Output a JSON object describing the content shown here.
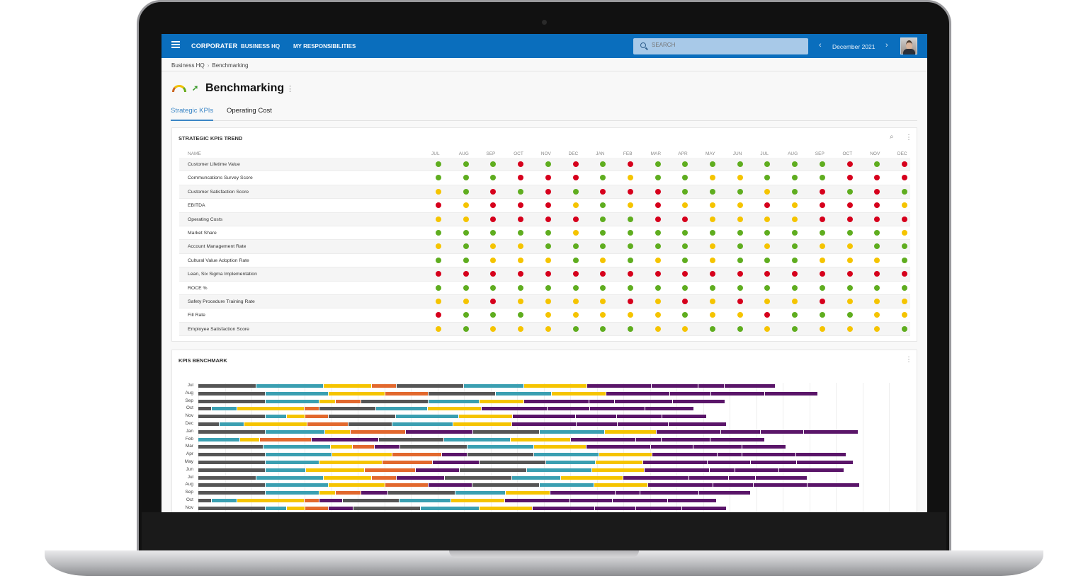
{
  "nav": {
    "logo": "CORPORATER",
    "links": [
      "BUSINESS HQ",
      "MY RESPONSIBILITIES"
    ],
    "search_placeholder": "SEARCH",
    "period": "December 2021",
    "prev": "‹",
    "next": "›"
  },
  "breadcrumb": [
    "Business HQ",
    "Benchmarking"
  ],
  "breadcrumb_sep": "›",
  "page": {
    "title": "Benchmarking",
    "tabs": [
      "Strategic KPIs",
      "Operating Cost"
    ],
    "active_tab": 0
  },
  "colors": {
    "G": "#5fad1f",
    "Y": "#f5c400",
    "R": "#d6001c",
    "D": "#555555",
    "T": "#3a9fb1",
    "O": "#e2682d",
    "P": "#5a1569",
    "brand": "#0a6ebd"
  },
  "trend": {
    "title": "STRATEGIC KPIS TREND",
    "name_header": "NAME",
    "months": [
      "JUL",
      "AUG",
      "SEP",
      "OCT",
      "NOV",
      "DEC",
      "JAN",
      "FEB",
      "MAR",
      "APR",
      "MAY",
      "JUN",
      "JUL",
      "AUG",
      "SEP",
      "OCT",
      "NOV",
      "DEC"
    ],
    "rows": [
      {
        "name": "Customer Lifetime Value",
        "status": "GGGRGRGRGGGGGGGRGR"
      },
      {
        "name": "Communcations Survey Score",
        "status": "GGGRRRGYGGYYGGGRRR"
      },
      {
        "name": "Customer Satisfaction Score",
        "status": "YGRGRGRRRGGGYGRGRG"
      },
      {
        "name": "EBITDA",
        "status": "RYRRRYGYRYYYRYRRRY"
      },
      {
        "name": "Operating Costs",
        "status": "YYRRRRGGRRYYYYRRRR"
      },
      {
        "name": "Market Share",
        "status": "GGGGGYGGGGGGGGGGGY"
      },
      {
        "name": "Account Management Rate",
        "status": "YGYYGGGGGGYGYGYYGG"
      },
      {
        "name": "Cultural Value Adoption Rate",
        "status": "GGYYYGYGYGYGGGYYYG"
      },
      {
        "name": "Lean, Six Sigma Implementation",
        "status": "RRRRRRRRRRRRRRRRRR"
      },
      {
        "name": "ROCE %",
        "status": "GGGGGGGGGGGGGGGGGG"
      },
      {
        "name": "Safety Procedure Training Rate",
        "status": "YYRYYYYRYRYRYYRYYY"
      },
      {
        "name": "Fill Rate",
        "status": "RGGGYYYYYGYYRGGGYY"
      },
      {
        "name": "Employee Satisfaction Score",
        "status": "YGYYYGGGYYGGYGYYYG"
      }
    ]
  },
  "chart_data": {
    "type": "bar",
    "orientation": "horizontal",
    "stacked": true,
    "title": "KPIS BENCHMARK",
    "grid": true,
    "categories": [
      "Jul",
      "Aug",
      "Sep",
      "Oct",
      "Nov",
      "Dec",
      "Jan",
      "Feb",
      "Mar",
      "Apr",
      "May",
      "Jun",
      "Jul",
      "Aug",
      "Sep",
      "Oct",
      "Nov"
    ],
    "segments": [
      [
        [
          "D",
          82
        ],
        [
          "T",
          95
        ],
        [
          "Y",
          68
        ],
        [
          "O",
          35
        ],
        [
          "D",
          95
        ],
        [
          "T",
          85
        ],
        [
          "Y",
          89
        ],
        [
          "P",
          91
        ],
        [
          "P",
          66
        ],
        [
          "P",
          37
        ],
        [
          "P",
          72
        ]
      ],
      [
        [
          "D",
          95
        ],
        [
          "T",
          89
        ],
        [
          "Y",
          80
        ],
        [
          "O",
          61
        ],
        [
          "D",
          95
        ],
        [
          "T",
          79
        ],
        [
          "Y",
          77
        ],
        [
          "P",
          90
        ],
        [
          "P",
          58
        ],
        [
          "P",
          76
        ],
        [
          "P",
          75
        ]
      ],
      [
        [
          "D",
          95
        ],
        [
          "T",
          76
        ],
        [
          "Y",
          23
        ],
        [
          "O",
          36
        ],
        [
          "D",
          95
        ],
        [
          "T",
          72
        ],
        [
          "Y",
          63
        ],
        [
          "P",
          92
        ],
        [
          "P",
          36
        ],
        [
          "P",
          82
        ],
        [
          "P",
          74
        ]
      ],
      [
        [
          "D",
          19
        ],
        [
          "T",
          36
        ],
        [
          "Y",
          95
        ],
        [
          "O",
          21
        ],
        [
          "D",
          80
        ],
        [
          "T",
          73
        ],
        [
          "Y",
          76
        ],
        [
          "P",
          93
        ],
        [
          "P",
          60
        ],
        [
          "P",
          78
        ],
        [
          "P",
          69
        ]
      ],
      [
        [
          "D",
          95
        ],
        [
          "T",
          30
        ],
        [
          "Y",
          26
        ],
        [
          "O",
          33
        ],
        [
          "D",
          95
        ],
        [
          "T",
          89
        ],
        [
          "Y",
          76
        ],
        [
          "P",
          89
        ],
        [
          "P",
          58
        ],
        [
          "P",
          64
        ],
        [
          "P",
          63
        ]
      ],
      [
        [
          "D",
          30
        ],
        [
          "T",
          35
        ],
        [
          "Y",
          89
        ],
        [
          "O",
          58
        ],
        [
          "D",
          62
        ],
        [
          "T",
          86
        ],
        [
          "Y",
          83
        ],
        [
          "P",
          91
        ],
        [
          "P",
          58
        ],
        [
          "P",
          72
        ],
        [
          "P",
          82
        ]
      ],
      [
        [
          "D",
          95
        ],
        [
          "T",
          84
        ],
        [
          "Y",
          36
        ],
        [
          "O",
          78
        ],
        [
          "P",
          95
        ],
        [
          "D",
          94
        ],
        [
          "T",
          92
        ],
        [
          "Y",
          73
        ],
        [
          "P",
          91
        ],
        [
          "P",
          56
        ],
        [
          "P",
          61
        ],
        [
          "P",
          77
        ]
      ],
      [
        [
          "T",
          59
        ],
        [
          "Y",
          28
        ],
        [
          "O",
          73
        ],
        [
          "P",
          95
        ],
        [
          "D",
          92
        ],
        [
          "T",
          94
        ],
        [
          "Y",
          85
        ],
        [
          "P",
          92
        ],
        [
          "P",
          36
        ],
        [
          "P",
          69
        ],
        [
          "P",
          77
        ]
      ],
      [
        [
          "D",
          92
        ],
        [
          "T",
          95
        ],
        [
          "Y",
          31
        ],
        [
          "O",
          31
        ],
        [
          "P",
          36
        ],
        [
          "D",
          95
        ],
        [
          "T",
          94
        ],
        [
          "Y",
          74
        ],
        [
          "P",
          91
        ],
        [
          "P",
          60
        ],
        [
          "P",
          69
        ],
        [
          "P",
          62
        ]
      ],
      [
        [
          "D",
          95
        ],
        [
          "T",
          94
        ],
        [
          "Y",
          85
        ],
        [
          "O",
          70
        ],
        [
          "P",
          36
        ],
        [
          "D",
          94
        ],
        [
          "T",
          92
        ],
        [
          "Y",
          75
        ],
        [
          "P",
          92
        ],
        [
          "P",
          35
        ],
        [
          "P",
          76
        ],
        [
          "P",
          71
        ]
      ],
      [
        [
          "D",
          95
        ],
        [
          "T",
          76
        ],
        [
          "Y",
          89
        ],
        [
          "O",
          71
        ],
        [
          "P",
          66
        ],
        [
          "D",
          94
        ],
        [
          "T",
          70
        ],
        [
          "Y",
          67
        ],
        [
          "P",
          91
        ],
        [
          "P",
          61
        ],
        [
          "P",
          65
        ],
        [
          "P",
          80
        ]
      ],
      [
        [
          "D",
          95
        ],
        [
          "T",
          57
        ],
        [
          "Y",
          83
        ],
        [
          "O",
          72
        ],
        [
          "P",
          62
        ],
        [
          "D",
          95
        ],
        [
          "T",
          92
        ],
        [
          "Y",
          74
        ],
        [
          "P",
          92
        ],
        [
          "P",
          36
        ],
        [
          "P",
          62
        ],
        [
          "P",
          92
        ]
      ],
      [
        [
          "D",
          82
        ],
        [
          "T",
          95
        ],
        [
          "Y",
          68
        ],
        [
          "O",
          35
        ],
        [
          "P",
          68
        ],
        [
          "D",
          95
        ],
        [
          "T",
          69
        ],
        [
          "Y",
          88
        ],
        [
          "P",
          93
        ],
        [
          "P",
          56
        ],
        [
          "P",
          38
        ],
        [
          "P",
          73
        ]
      ],
      [
        [
          "D",
          95
        ],
        [
          "T",
          89
        ],
        [
          "Y",
          80
        ],
        [
          "O",
          61
        ],
        [
          "P",
          62
        ],
        [
          "D",
          95
        ],
        [
          "T",
          77
        ],
        [
          "Y",
          76
        ],
        [
          "P",
          92
        ],
        [
          "P",
          57
        ],
        [
          "P",
          76
        ],
        [
          "P",
          74
        ]
      ],
      [
        [
          "D",
          95
        ],
        [
          "T",
          76
        ],
        [
          "Y",
          23
        ],
        [
          "O",
          36
        ],
        [
          "P",
          38
        ],
        [
          "D",
          95
        ],
        [
          "T",
          71
        ],
        [
          "Y",
          63
        ],
        [
          "P",
          92
        ],
        [
          "P",
          35
        ],
        [
          "P",
          83
        ],
        [
          "P",
          73
        ]
      ],
      [
        [
          "D",
          19
        ],
        [
          "T",
          36
        ],
        [
          "Y",
          95
        ],
        [
          "O",
          21
        ],
        [
          "P",
          33
        ],
        [
          "D",
          80
        ],
        [
          "T",
          73
        ],
        [
          "Y",
          76
        ],
        [
          "P",
          92
        ],
        [
          "P",
          60
        ],
        [
          "P",
          78
        ],
        [
          "P",
          69
        ]
      ],
      [
        [
          "D",
          95
        ],
        [
          "T",
          30
        ],
        [
          "Y",
          26
        ],
        [
          "O",
          33
        ],
        [
          "P",
          35
        ],
        [
          "D",
          95
        ],
        [
          "T",
          83
        ],
        [
          "Y",
          75
        ],
        [
          "P",
          88
        ],
        [
          "P",
          58
        ],
        [
          "P",
          65
        ],
        [
          "P",
          63
        ]
      ]
    ]
  }
}
